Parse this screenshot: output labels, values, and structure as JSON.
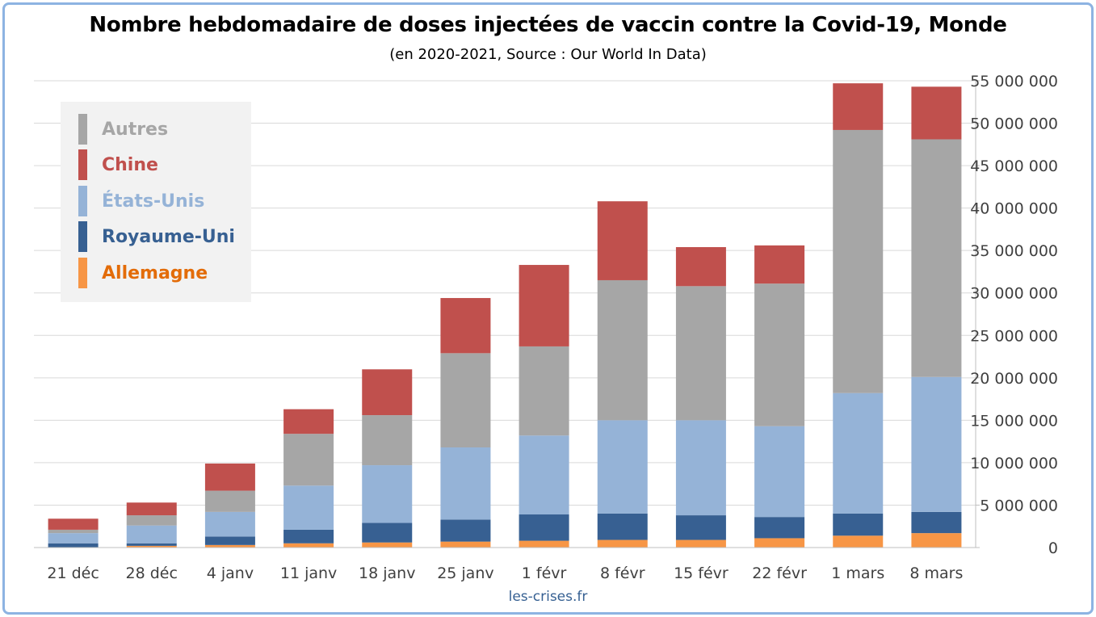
{
  "title": "Nombre hebdomadaire de doses injectées de vaccin contre la Covid-19, Monde",
  "subtitle": "(en 2020-2021, Source : Our World In Data)",
  "source_credit": "les-crises.fr",
  "chart_data": {
    "type": "bar",
    "stacked": true,
    "title": "Nombre hebdomadaire de doses injectées de vaccin contre la Covid-19, Monde",
    "subtitle": "(en 2020-2021, Source : Our World In Data)",
    "categories": [
      "21 déc",
      "28 déc",
      "4 janv",
      "11 janv",
      "18 janv",
      "25 janv",
      "1 févr",
      "8 févr",
      "15 févr",
      "22 févr",
      "1 mars",
      "8 mars"
    ],
    "series": [
      {
        "name": "Allemagne",
        "color": "#f79646",
        "values": [
          0,
          200000,
          300000,
          500000,
          600000,
          700000,
          800000,
          900000,
          900000,
          1100000,
          1400000,
          1700000
        ]
      },
      {
        "name": "Royaume-Uni",
        "color": "#376092",
        "values": [
          500000,
          300000,
          1000000,
          1600000,
          2300000,
          2600000,
          3100000,
          3100000,
          2900000,
          2500000,
          2600000,
          2500000
        ]
      },
      {
        "name": "États-Unis",
        "color": "#95b3d7",
        "values": [
          1200000,
          2100000,
          2900000,
          5200000,
          6800000,
          8500000,
          9300000,
          11000000,
          11200000,
          10700000,
          14200000,
          15900000
        ]
      },
      {
        "name": "Autres",
        "color": "#a6a6a6",
        "values": [
          400000,
          1200000,
          2500000,
          6100000,
          5900000,
          11100000,
          10500000,
          16500000,
          15800000,
          16800000,
          31000000,
          28000000
        ]
      },
      {
        "name": "Chine",
        "color": "#c0504d",
        "values": [
          1300000,
          1500000,
          3200000,
          2900000,
          5400000,
          6500000,
          9600000,
          9300000,
          4600000,
          4500000,
          5500000,
          6200000
        ]
      }
    ],
    "ylim": [
      0,
      55000000
    ],
    "yticks": [
      0,
      5000000,
      10000000,
      15000000,
      20000000,
      25000000,
      30000000,
      35000000,
      40000000,
      45000000,
      50000000,
      55000000
    ],
    "ytick_labels": [
      "0",
      "5 000 000",
      "10 000 000",
      "15 000 000",
      "20 000 000",
      "25 000 000",
      "30 000 000",
      "35 000 000",
      "40 000 000",
      "45 000 000",
      "50 000 000",
      "55 000 000"
    ],
    "y_axis_side": "right",
    "grid": true,
    "legend_position": "top-left",
    "legend_order": [
      "Autres",
      "Chine",
      "États-Unis",
      "Royaume-Uni",
      "Allemagne"
    ]
  },
  "legend": {
    "items": [
      {
        "label": "Autres",
        "color": "#a6a6a6"
      },
      {
        "label": "Chine",
        "color": "#c0504d"
      },
      {
        "label": "États-Unis",
        "color": "#95b3d7"
      },
      {
        "label": "Royaume-Uni",
        "color": "#376092"
      },
      {
        "label": "Allemagne",
        "color": "#e36c09",
        "swatch_color": "#f79646"
      }
    ]
  }
}
